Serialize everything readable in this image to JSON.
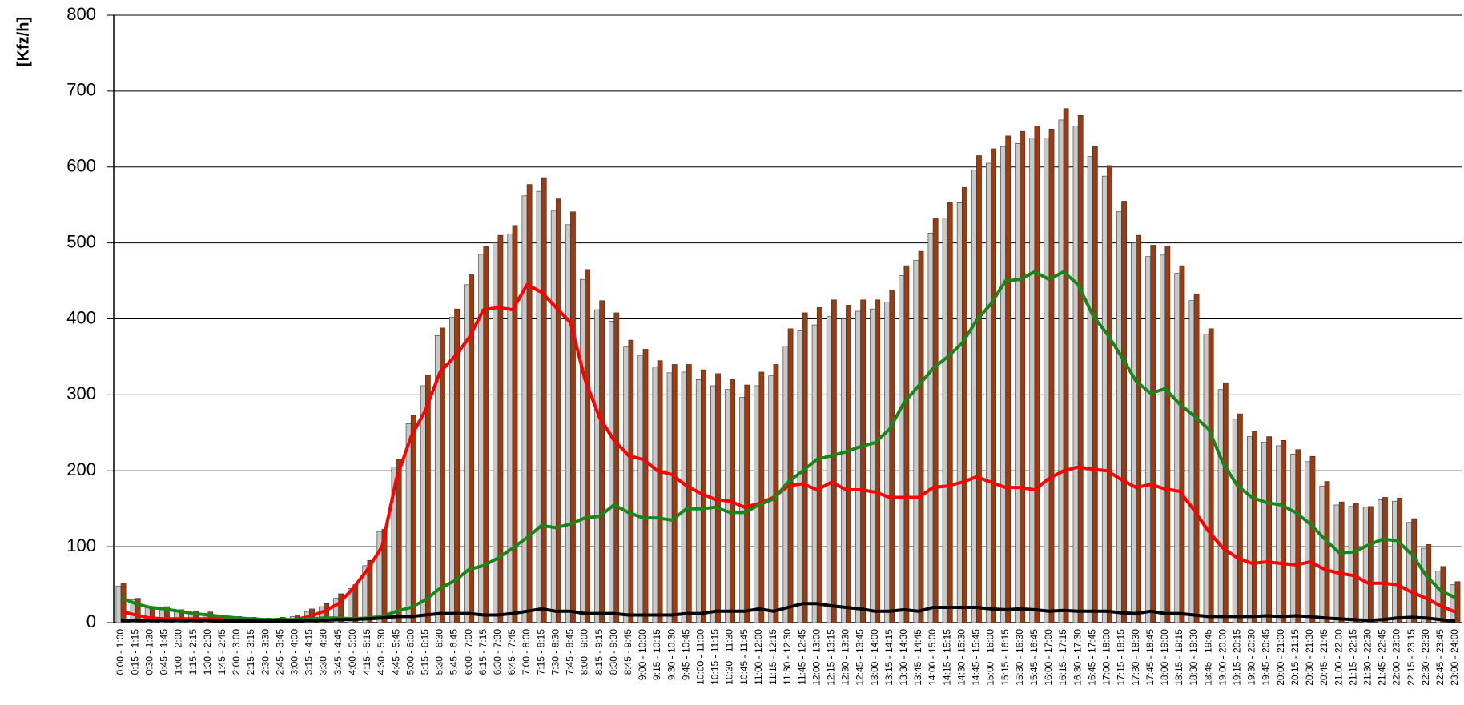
{
  "chart_data": {
    "type": "bar",
    "y_label": "[Kfz/h]",
    "ylim": [
      0,
      800
    ],
    "yticks": [
      0,
      100,
      200,
      300,
      400,
      500,
      600,
      700,
      800
    ],
    "grid": true,
    "categories": [
      "0:00 - 1:00",
      "0:15 - 1:15",
      "0:30 - 1:30",
      "0:45 - 1:45",
      "1:00 - 2:00",
      "1:15 - 2:15",
      "1:30 - 2:30",
      "1:45 - 2:45",
      "2:00 - 3:00",
      "2:15 - 3:15",
      "2:30 - 3:30",
      "2:45 - 3:45",
      "3:00 - 4:00",
      "3:15 - 4:15",
      "3:30 - 4:30",
      "3:45 - 4:45",
      "4:00 - 5:00",
      "4:15 - 5:15",
      "4:30 - 5:30",
      "4:45 - 5:45",
      "5:00 - 6:00",
      "5:15 - 6:15",
      "5:30 - 6:30",
      "5:45 - 6:45",
      "6:00 - 7:00",
      "6:15 - 7:15",
      "6:30 - 7:30",
      "6:45 - 7:45",
      "7:00 - 8:00",
      "7:15 - 8:15",
      "7:30 - 8:30",
      "7:45 - 8:45",
      "8:00 - 9:00",
      "8:15 - 9:15",
      "8:30 - 9:30",
      "8:45 - 9:45",
      "9:00 - 10:00",
      "9:15 - 10:15",
      "9:30 - 10:30",
      "9:45 - 10:45",
      "10:00 - 11:00",
      "10:15 - 11:15",
      "10:30 - 11:30",
      "10:45 - 11:45",
      "11:00 - 12:00",
      "11:15 - 12:15",
      "11:30 - 12:30",
      "11:45 - 12:45",
      "12:00 - 13:00",
      "12:15 - 13:15",
      "12:30 - 13:30",
      "12:45 - 13:45",
      "13:00 - 14:00",
      "13:15 - 14:15",
      "13:30 - 14:30",
      "13:45 - 14:45",
      "14:00 - 15:00",
      "14:15 - 15:15",
      "14:30 - 15:30",
      "14:45 - 15:45",
      "15:00 - 16:00",
      "15:15 - 16:15",
      "15:30 - 16:30",
      "15:45 - 16:45",
      "16:00 - 17:00",
      "16:15 - 17:15",
      "16:30 - 17:30",
      "16:45 - 17:45",
      "17:00 - 18:00",
      "17:15 - 18:15",
      "17:30 - 18:30",
      "17:45 - 18:45",
      "18:00 - 19:00",
      "18:15 - 19:15",
      "18:30 - 19:30",
      "18:45 - 19:45",
      "19:00 - 20:00",
      "19:15 - 20:15",
      "19:30 - 20:30",
      "19:45 - 20:45",
      "20:00 - 21:00",
      "20:15 - 21:15",
      "20:30 - 21:30",
      "20:45 - 21:45",
      "21:00 - 22:00",
      "21:15 - 22:15",
      "21:30 - 22:30",
      "21:45 - 22:45",
      "22:00 - 23:00",
      "22:15 - 23:15",
      "22:30 - 23:30",
      "22:45 - 23:45",
      "23:00 - 24:00"
    ],
    "series": [
      {
        "type": "bar",
        "color": "#c8c8c8",
        "values": [
          48,
          30,
          20,
          19,
          16,
          13,
          12,
          9,
          7,
          6,
          5,
          6,
          8,
          14,
          21,
          32,
          45,
          75,
          120,
          205,
          262,
          312,
          378,
          402,
          445,
          485,
          500,
          512,
          562,
          568,
          542,
          524,
          452,
          412,
          397,
          363,
          352,
          337,
          329,
          330,
          320,
          312,
          307,
          297,
          312,
          325,
          364,
          384,
          392,
          403,
          400,
          410,
          413,
          422,
          457,
          477,
          513,
          533,
          553,
          596,
          605,
          627,
          631,
          638,
          638,
          662,
          654,
          614,
          588,
          541,
          500,
          482,
          484,
          460,
          424,
          380,
          307,
          268,
          245,
          238,
          233,
          222,
          212,
          180,
          155,
          153,
          152,
          162,
          160,
          132,
          98,
          68,
          50
        ]
      },
      {
        "type": "bar",
        "color": "#9c3a10",
        "values": [
          52,
          32,
          20,
          21,
          17,
          15,
          14,
          9,
          8,
          7,
          6,
          7,
          9,
          18,
          25,
          38,
          50,
          82,
          123,
          215,
          273,
          326,
          388,
          413,
          458,
          495,
          510,
          523,
          577,
          586,
          558,
          541,
          465,
          424,
          408,
          372,
          360,
          345,
          340,
          340,
          333,
          328,
          320,
          313,
          330,
          340,
          387,
          408,
          415,
          425,
          418,
          425,
          425,
          437,
          470,
          489,
          533,
          553,
          573,
          615,
          624,
          641,
          647,
          654,
          650,
          677,
          668,
          627,
          602,
          555,
          510,
          497,
          496,
          470,
          433,
          387,
          316,
          275,
          252,
          245,
          240,
          228,
          219,
          186,
          159,
          157,
          153,
          165,
          164,
          137,
          103,
          74,
          54
        ]
      },
      {
        "type": "line",
        "color": "#ff0000",
        "values": [
          15,
          10,
          6,
          5,
          5,
          5,
          5,
          5,
          4,
          4,
          3,
          3,
          4,
          8,
          15,
          25,
          45,
          70,
          100,
          190,
          245,
          280,
          330,
          350,
          375,
          412,
          415,
          412,
          445,
          435,
          415,
          395,
          320,
          270,
          240,
          220,
          215,
          200,
          195,
          180,
          170,
          162,
          160,
          152,
          157,
          165,
          180,
          183,
          175,
          185,
          175,
          175,
          172,
          165,
          165,
          165,
          178,
          180,
          185,
          192,
          185,
          178,
          178,
          175,
          190,
          200,
          205,
          202,
          200,
          188,
          178,
          182,
          176,
          173,
          148,
          120,
          98,
          85,
          78,
          80,
          78,
          76,
          80,
          70,
          65,
          62,
          52,
          52,
          50,
          40,
          32,
          22,
          14
        ]
      },
      {
        "type": "line",
        "color": "#1a861a",
        "values": [
          33,
          25,
          20,
          18,
          15,
          12,
          10,
          8,
          6,
          5,
          4,
          4,
          4,
          5,
          6,
          6,
          5,
          6,
          8,
          15,
          20,
          30,
          45,
          55,
          70,
          75,
          85,
          98,
          112,
          128,
          125,
          130,
          138,
          140,
          155,
          145,
          138,
          138,
          135,
          150,
          150,
          152,
          145,
          145,
          155,
          163,
          185,
          200,
          215,
          220,
          225,
          232,
          237,
          255,
          290,
          312,
          335,
          350,
          368,
          398,
          420,
          450,
          452,
          462,
          452,
          462,
          445,
          405,
          380,
          350,
          318,
          302,
          308,
          288,
          272,
          255,
          210,
          180,
          165,
          158,
          155,
          145,
          130,
          110,
          92,
          93,
          102,
          110,
          108,
          90,
          62,
          42,
          33
        ]
      },
      {
        "type": "line",
        "color": "#000000",
        "values": [
          3,
          3,
          3,
          3,
          3,
          3,
          3,
          2,
          2,
          2,
          2,
          2,
          2,
          3,
          3,
          4,
          4,
          5,
          6,
          8,
          8,
          10,
          12,
          12,
          12,
          10,
          10,
          12,
          15,
          18,
          15,
          15,
          12,
          12,
          12,
          10,
          10,
          10,
          10,
          12,
          12,
          15,
          15,
          15,
          18,
          15,
          20,
          25,
          25,
          22,
          20,
          18,
          15,
          15,
          17,
          15,
          20,
          20,
          20,
          20,
          18,
          17,
          18,
          17,
          15,
          16,
          15,
          15,
          15,
          13,
          12,
          15,
          12,
          12,
          10,
          8,
          8,
          8,
          8,
          9,
          8,
          9,
          8,
          6,
          5,
          4,
          3,
          4,
          6,
          7,
          6,
          4,
          2
        ]
      }
    ]
  }
}
